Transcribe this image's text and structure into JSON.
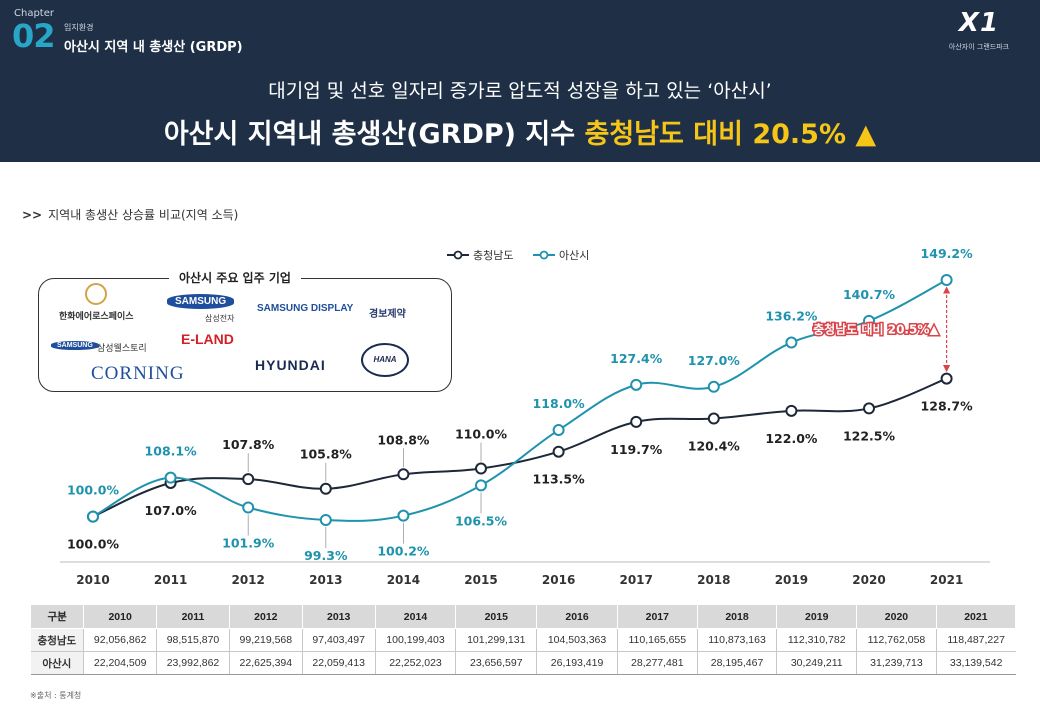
{
  "header": {
    "chapter_word": "Chapter",
    "chapter_num": "02",
    "chapter_sub": "입지환경",
    "chapter_title": "아산시 지역 내 총생산 (GRDP)",
    "brand_logo": "X1",
    "brand_name": "아산자이 그랜드파크",
    "headline_1": "대기업 및 선호 일자리 증가로 압도적 성장을 하고 있는 ‘아산시’",
    "headline_2_a": "아산시 지역내 총생산(GRDP) 지수 ",
    "headline_2_b": "충청남도 대비 20.5% ▲"
  },
  "section_title": "지역내 총생산 상승률 비교(지역 소득)",
  "companies": {
    "title": "아산시 주요 입주 기업",
    "items": [
      "한화에어로스페이스",
      "SAMSUNG",
      "삼성전자",
      "SAMSUNG DISPLAY",
      "경보제약",
      "SAMSUNG",
      "삼성웰스토리",
      "E-LAND",
      "CORNING",
      "HYUNDAI",
      "HANA"
    ]
  },
  "chart_data": {
    "type": "line",
    "x": [
      "2010",
      "2011",
      "2012",
      "2013",
      "2014",
      "2015",
      "2016",
      "2017",
      "2018",
      "2019",
      "2020",
      "2021"
    ],
    "series": [
      {
        "name": "충청남도",
        "color": "#1d2838",
        "values": [
          100.0,
          107.0,
          107.8,
          105.8,
          108.8,
          110.0,
          113.5,
          119.7,
          120.4,
          122.0,
          122.5,
          128.7
        ],
        "labels": [
          "100.0%",
          "107.0%",
          "107.8%",
          "105.8%",
          "108.8%",
          "110.0%",
          "113.5%",
          "119.7%",
          "120.4%",
          "122.0%",
          "122.5%",
          "128.7%"
        ]
      },
      {
        "name": "아산시",
        "color": "#1f93ad",
        "values": [
          100.0,
          108.1,
          101.9,
          99.3,
          100.2,
          106.5,
          118.0,
          127.4,
          127.0,
          136.2,
          140.7,
          149.2
        ],
        "labels": [
          "100.0%",
          "108.1%",
          "101.9%",
          "99.3%",
          "100.2%",
          "106.5%",
          "118.0%",
          "127.4%",
          "127.0%",
          "136.2%",
          "140.7%",
          "149.2%"
        ]
      }
    ],
    "annotation": "충청남도 대비 20.5%▲",
    "legend": "top-center",
    "grid": false
  },
  "table": {
    "header": [
      "구분",
      "2010",
      "2011",
      "2012",
      "2013",
      "2014",
      "2015",
      "2016",
      "2017",
      "2018",
      "2019",
      "2020",
      "2021"
    ],
    "rows": [
      [
        "충청남도",
        "92,056,862",
        "98,515,870",
        "99,219,568",
        "97,403,497",
        "100,199,403",
        "101,299,131",
        "104,503,363",
        "110,165,655",
        "110,873,163",
        "112,310,782",
        "112,762,058",
        "118,487,227"
      ],
      [
        "아산시",
        "22,204,509",
        "23,992,862",
        "22,625,394",
        "22,059,413",
        "22,252,023",
        "23,656,597",
        "26,193,419",
        "28,277,481",
        "28,195,467",
        "30,249,211",
        "31,239,713",
        "33,139,542"
      ]
    ]
  },
  "source": "※출처 : 통계청"
}
